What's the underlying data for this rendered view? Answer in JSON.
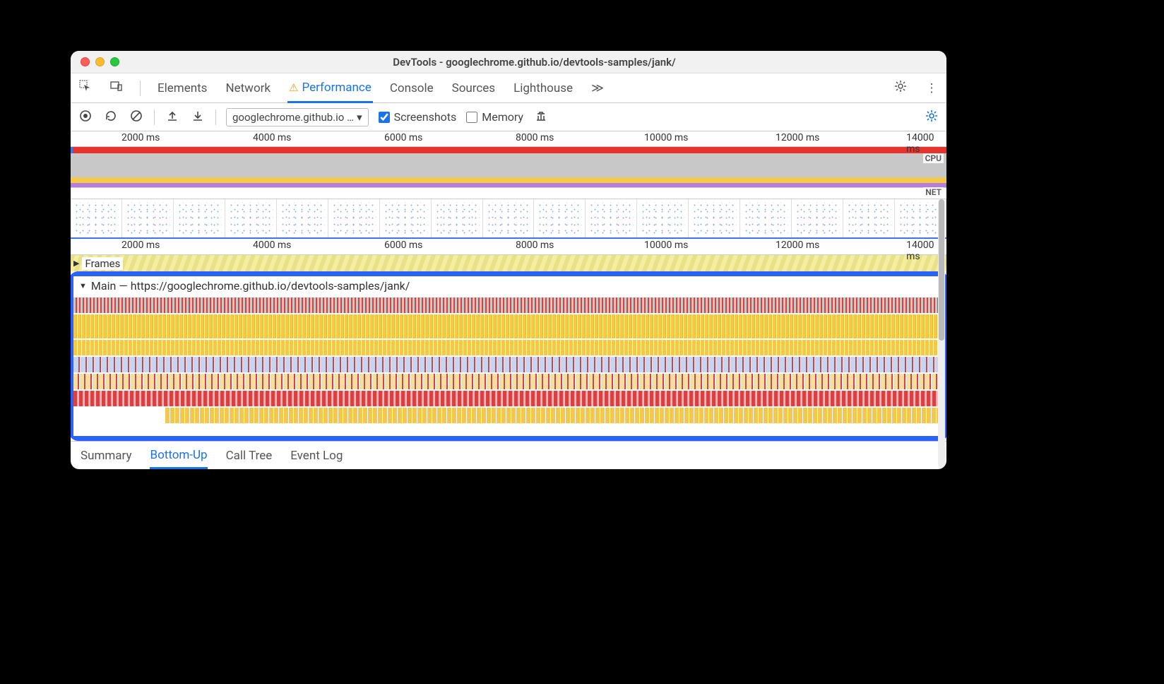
{
  "window": {
    "title": "DevTools - googlechrome.github.io/devtools-samples/jank/"
  },
  "tabs": {
    "items": [
      "Elements",
      "Network",
      "Performance",
      "Console",
      "Sources",
      "Lighthouse"
    ],
    "active": "Performance",
    "warning_on": "Performance",
    "overflow_glyph": "≫"
  },
  "toolbar": {
    "url_label": "googlechrome.github.io …",
    "screenshots_label": "Screenshots",
    "screenshots_checked": true,
    "memory_label": "Memory",
    "memory_checked": false
  },
  "ruler": {
    "ticks": [
      {
        "pos_pct": 8,
        "label": "2000 ms"
      },
      {
        "pos_pct": 23,
        "label": "4000 ms"
      },
      {
        "pos_pct": 38,
        "label": "6000 ms"
      },
      {
        "pos_pct": 53,
        "label": "8000 ms"
      },
      {
        "pos_pct": 68,
        "label": "10000 ms"
      },
      {
        "pos_pct": 83,
        "label": "12000 ms"
      },
      {
        "pos_pct": 97,
        "label": "14000 ms"
      }
    ]
  },
  "overview": {
    "cpu_label": "CPU",
    "net_label": "NET",
    "thumbnail_count": 17
  },
  "frames": {
    "label": "Frames"
  },
  "main": {
    "header": "Main — https://googlechrome.github.io/devtools-samples/jank/",
    "lane_colors": {
      "task": "#d9413a",
      "scripting": "#f2c94c",
      "layout_light": "#c8d5f0",
      "layout_mix": "#f5dfa0",
      "paint": "#e9afc8",
      "background": "#ffffff"
    },
    "highlight_border_color": "#2a62ff"
  },
  "bottom_tabs": {
    "items": [
      "Summary",
      "Bottom-Up",
      "Call Tree",
      "Event Log"
    ],
    "active": "Bottom-Up"
  },
  "colors": {
    "accent": "#1a73e8",
    "overview_red": "#e8332d",
    "cpu_band": "#c8c8c8",
    "cpu_wave": "#f5c94a",
    "cpu_wave2": "#b57edc",
    "frames_stripe_a": "#e9e08a",
    "frames_stripe_b": "#f5ee9f"
  }
}
